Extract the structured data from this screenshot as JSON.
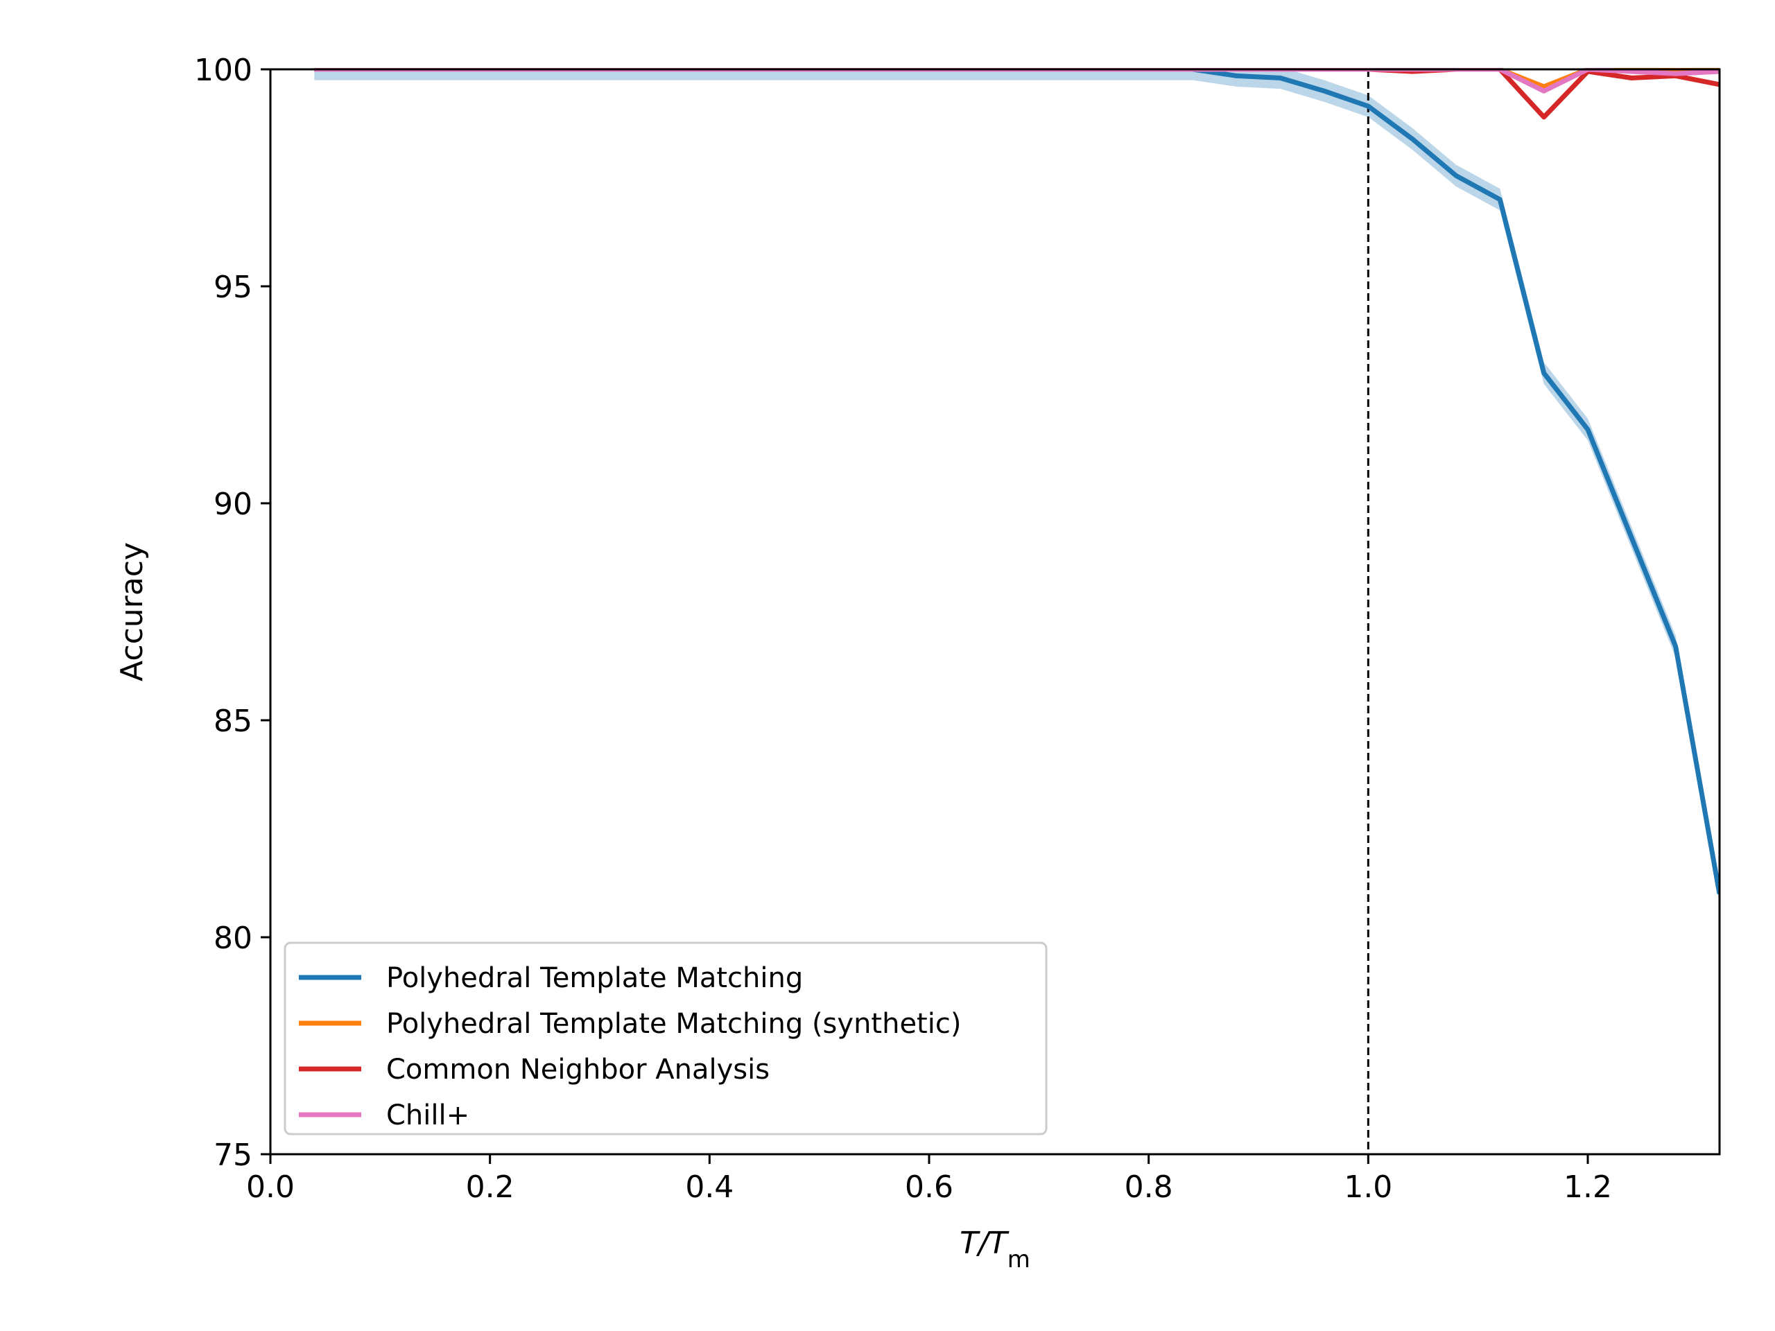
{
  "chart_data": {
    "type": "line",
    "xlabel_main": "T/T",
    "xlabel_sub": "m",
    "ylabel": "Accuracy",
    "xlim": [
      0.0,
      1.32
    ],
    "ylim": [
      75,
      100
    ],
    "xticks": [
      0.0,
      0.2,
      0.4,
      0.6,
      0.8,
      1.0,
      1.2
    ],
    "xtick_labels": [
      "0.0",
      "0.2",
      "0.4",
      "0.6",
      "0.8",
      "1.0",
      "1.2"
    ],
    "yticks": [
      75,
      80,
      85,
      90,
      95,
      100
    ],
    "ytick_labels": [
      "75",
      "80",
      "85",
      "90",
      "95",
      "100"
    ],
    "vline": {
      "x": 1.0,
      "style": "dashed",
      "color": "#000000"
    },
    "legend_position": "lower-left",
    "x": [
      0.04,
      0.08,
      0.12,
      0.16,
      0.2,
      0.24,
      0.28,
      0.32,
      0.36,
      0.4,
      0.44,
      0.48,
      0.52,
      0.56,
      0.6,
      0.64,
      0.68,
      0.72,
      0.76,
      0.8,
      0.84,
      0.88,
      0.92,
      0.96,
      1.0,
      1.04,
      1.08,
      1.12,
      1.16,
      1.2,
      1.24,
      1.28,
      1.32
    ],
    "series": [
      {
        "name": "Polyhedral Template Matching",
        "color": "#1f77b4",
        "band": 0.25,
        "values": [
          100,
          100,
          100,
          100,
          100,
          100,
          100,
          100,
          100,
          100,
          100,
          100,
          100,
          100,
          100,
          100,
          100,
          100,
          100,
          100,
          100,
          99.85,
          99.8,
          99.5,
          99.15,
          98.4,
          97.55,
          97.0,
          93.0,
          91.7,
          89.2,
          86.7,
          81.0
        ]
      },
      {
        "name": "Polyhedral Template Matching (synthetic)",
        "color": "#ff7f0e",
        "values": [
          100,
          100,
          100,
          100,
          100,
          100,
          100,
          100,
          100,
          100,
          100,
          100,
          100,
          100,
          100,
          100,
          100,
          100,
          100,
          100,
          100,
          100,
          100,
          100,
          100,
          100,
          100,
          100,
          99.6,
          100,
          100,
          100,
          100
        ]
      },
      {
        "name": "Common Neighbor Analysis",
        "color": "#d62728",
        "values": [
          100,
          100,
          100,
          100,
          100,
          100,
          100,
          100,
          100,
          100,
          100,
          100,
          100,
          100,
          100,
          100,
          100,
          100,
          100,
          100,
          100,
          100,
          100,
          100,
          100,
          99.95,
          100,
          100,
          98.9,
          99.95,
          99.8,
          99.85,
          99.65
        ]
      },
      {
        "name": "Chill+",
        "color": "#e377c2",
        "values": [
          100,
          100,
          100,
          100,
          100,
          100,
          100,
          100,
          100,
          100,
          100,
          100,
          100,
          100,
          100,
          100,
          100,
          100,
          100,
          100,
          100,
          100,
          100,
          100,
          100,
          100,
          100,
          100,
          99.5,
          100,
          99.95,
          99.9,
          99.95
        ]
      }
    ]
  }
}
